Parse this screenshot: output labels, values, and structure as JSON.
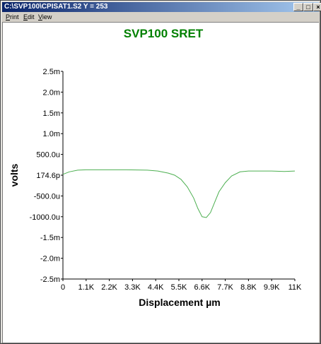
{
  "window": {
    "title": "C:\\SVP100\\CPISAT1.S2  Y = 253",
    "minimize_glyph": "_",
    "maximize_glyph": "□",
    "close_glyph": "×"
  },
  "menu": {
    "items": [
      {
        "label": "Print",
        "accel": "P",
        "rest": "rint"
      },
      {
        "label": "Edit",
        "accel": "E",
        "rest": "dit"
      },
      {
        "label": "View",
        "accel": "V",
        "rest": "iew"
      }
    ]
  },
  "chart_data": {
    "type": "line",
    "title": "SVP100 SRET",
    "xlabel": "Displacement µm",
    "ylabel": "volts",
    "title_color": "#008000",
    "line_color": "#4caf50",
    "grid": false,
    "xlim": [
      0,
      11000
    ],
    "ylim": [
      -2.5,
      2.5
    ],
    "x_ticks": [
      {
        "value": 0,
        "label": "0"
      },
      {
        "value": 1100,
        "label": "1.1K"
      },
      {
        "value": 2200,
        "label": "2.2K"
      },
      {
        "value": 3300,
        "label": "3.3K"
      },
      {
        "value": 4400,
        "label": "4.4K"
      },
      {
        "value": 5500,
        "label": "5.5K"
      },
      {
        "value": 6600,
        "label": "6.6K"
      },
      {
        "value": 7700,
        "label": "7.7K"
      },
      {
        "value": 8800,
        "label": "8.8K"
      },
      {
        "value": 9900,
        "label": "9.9K"
      },
      {
        "value": 11000,
        "label": "11K"
      }
    ],
    "y_ticks": [
      {
        "value": 2.5,
        "label": "2.5m"
      },
      {
        "value": 2.0,
        "label": "2.0m"
      },
      {
        "value": 1.5,
        "label": "1.5m"
      },
      {
        "value": 1.0,
        "label": "1.0m"
      },
      {
        "value": 0.5,
        "label": "500.0u"
      },
      {
        "value": 0.0,
        "label": "174.6p"
      },
      {
        "value": -0.5,
        "label": "-500.0u"
      },
      {
        "value": -1.0,
        "label": "-1000.0u"
      },
      {
        "value": -1.5,
        "label": "-1.5m"
      },
      {
        "value": -2.0,
        "label": "-2.0m"
      },
      {
        "value": -2.5,
        "label": "-2.5m"
      }
    ],
    "series": [
      {
        "x": [
          0,
          300,
          700,
          1100,
          2000,
          3000,
          4000,
          4500,
          5000,
          5300,
          5600,
          5900,
          6200,
          6400,
          6600,
          6800,
          7000,
          7200,
          7400,
          7700,
          8000,
          8400,
          8800,
          9200,
          9900,
          10500,
          11000
        ],
        "y": [
          0.02,
          0.08,
          0.12,
          0.13,
          0.13,
          0.13,
          0.12,
          0.1,
          0.05,
          0.0,
          -0.1,
          -0.28,
          -0.55,
          -0.8,
          -1.0,
          -1.02,
          -0.9,
          -0.65,
          -0.4,
          -0.18,
          -0.02,
          0.08,
          0.1,
          0.1,
          0.1,
          0.09,
          0.1
        ]
      }
    ]
  }
}
